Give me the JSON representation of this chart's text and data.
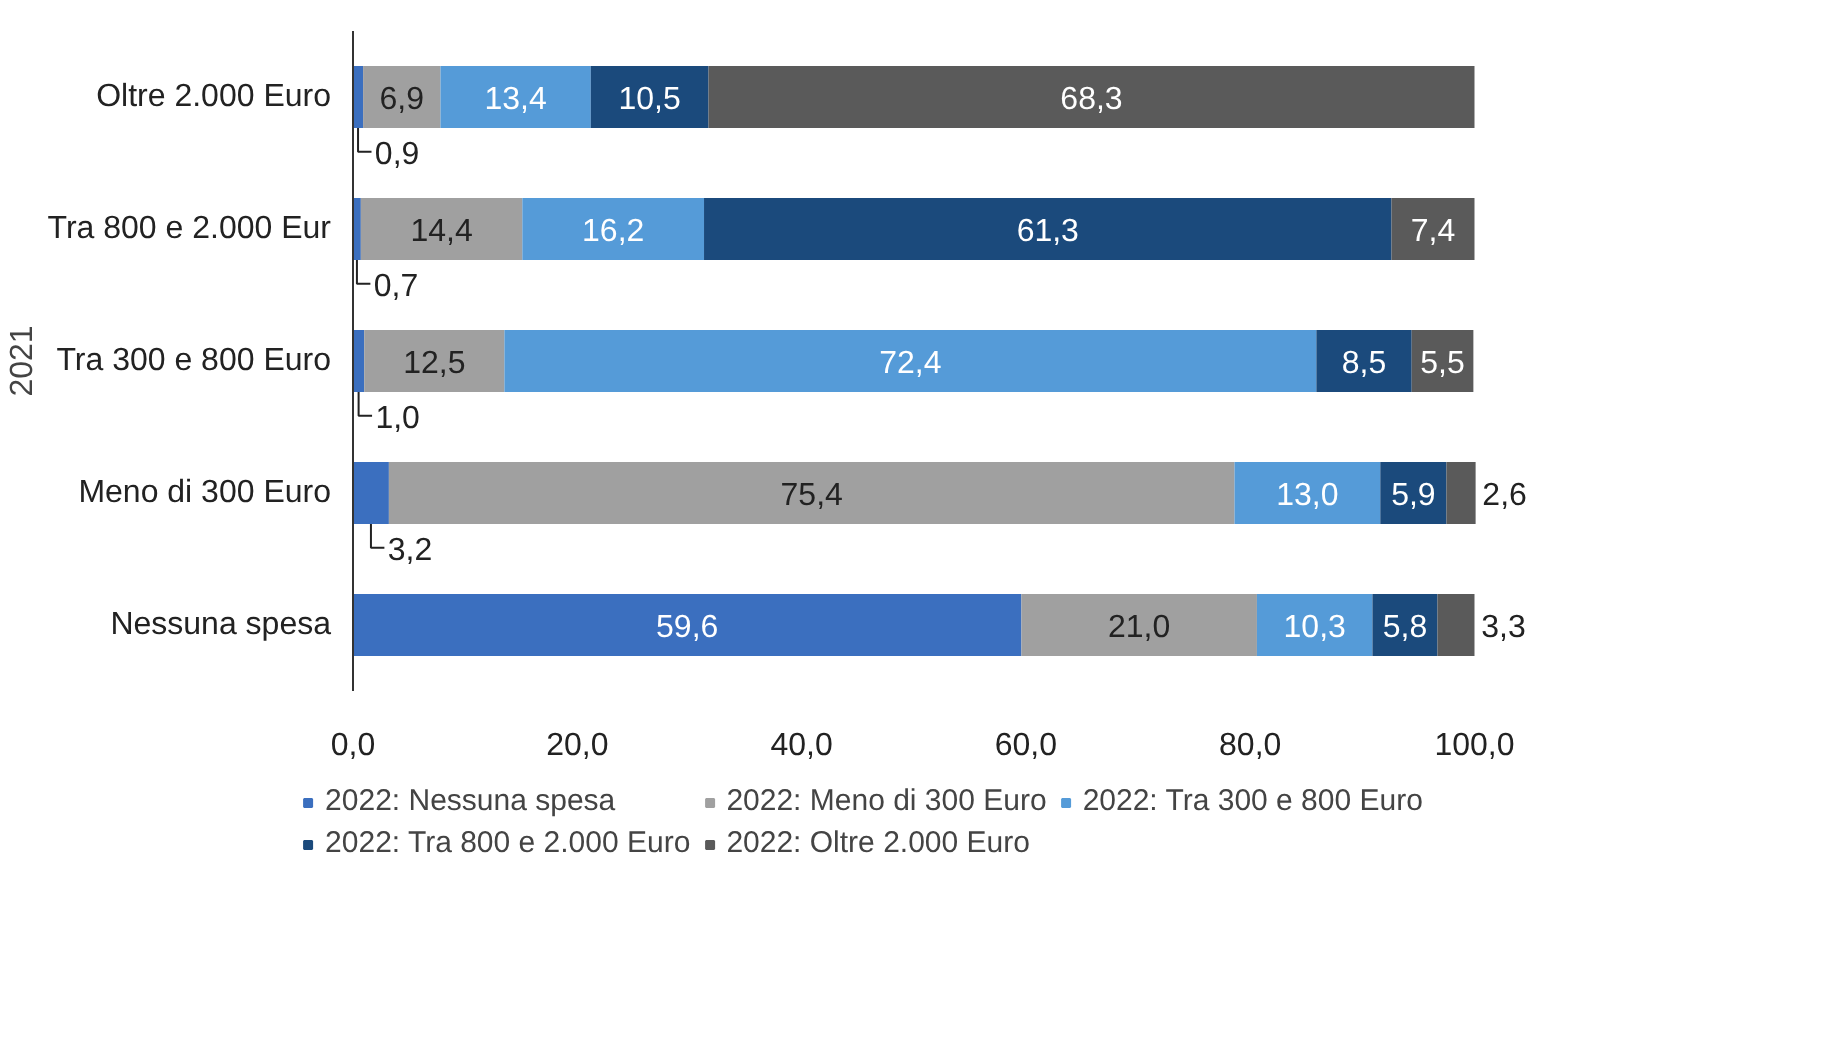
{
  "chart_data": {
    "type": "bar",
    "orientation": "horizontal",
    "stacked": true,
    "ylabel": "2021",
    "categories": [
      "Oltre 2.000 Euro",
      "Tra 800 e 2.000 Eur",
      "Tra 300 e 800 Euro",
      "Meno di 300 Euro",
      "Nessuna spesa"
    ],
    "series": [
      {
        "name": "2022: Nessuna spesa",
        "color": "#3b6fbf",
        "values": [
          0.9,
          0.7,
          1.0,
          3.2,
          59.6
        ],
        "value_labels": [
          "0,9",
          "0,7",
          "1,0",
          "3,2",
          "59,6"
        ]
      },
      {
        "name": "2022: Meno di 300 Euro",
        "color": "#a0a0a0",
        "values": [
          6.9,
          14.4,
          12.5,
          75.4,
          21.0
        ],
        "value_labels": [
          "6,9",
          "14,4",
          "12,5",
          "75,4",
          "21,0"
        ]
      },
      {
        "name": "2022: Tra 300 e 800 Euro",
        "color": "#559bd8",
        "values": [
          13.4,
          16.2,
          72.4,
          13.0,
          10.3
        ],
        "value_labels": [
          "13,4",
          "16,2",
          "72,4",
          "13,0",
          "10,3"
        ]
      },
      {
        "name": "2022: Tra 800 e 2.000 Euro",
        "color": "#1b4a7c",
        "values": [
          10.5,
          61.3,
          8.5,
          5.9,
          5.8
        ],
        "value_labels": [
          "10,5",
          "61,3",
          "8,5",
          "5,9",
          "5,8"
        ]
      },
      {
        "name": "2022: Oltre 2.000 Euro",
        "color": "#5a5a5a",
        "values": [
          68.3,
          7.4,
          5.5,
          2.6,
          3.3
        ],
        "value_labels": [
          "68,3",
          "7,4",
          "5,5",
          "2,6",
          "3,3"
        ]
      }
    ],
    "xlim": [
      0,
      100
    ],
    "xticks": [
      {
        "value": 0,
        "label": "0,0"
      },
      {
        "value": 20,
        "label": "20,0"
      },
      {
        "value": 40,
        "label": "40,0"
      },
      {
        "value": 60,
        "label": "60,0"
      },
      {
        "value": 80,
        "label": "80,0"
      },
      {
        "value": 100,
        "label": "100,0"
      }
    ],
    "legend": "bottom"
  }
}
